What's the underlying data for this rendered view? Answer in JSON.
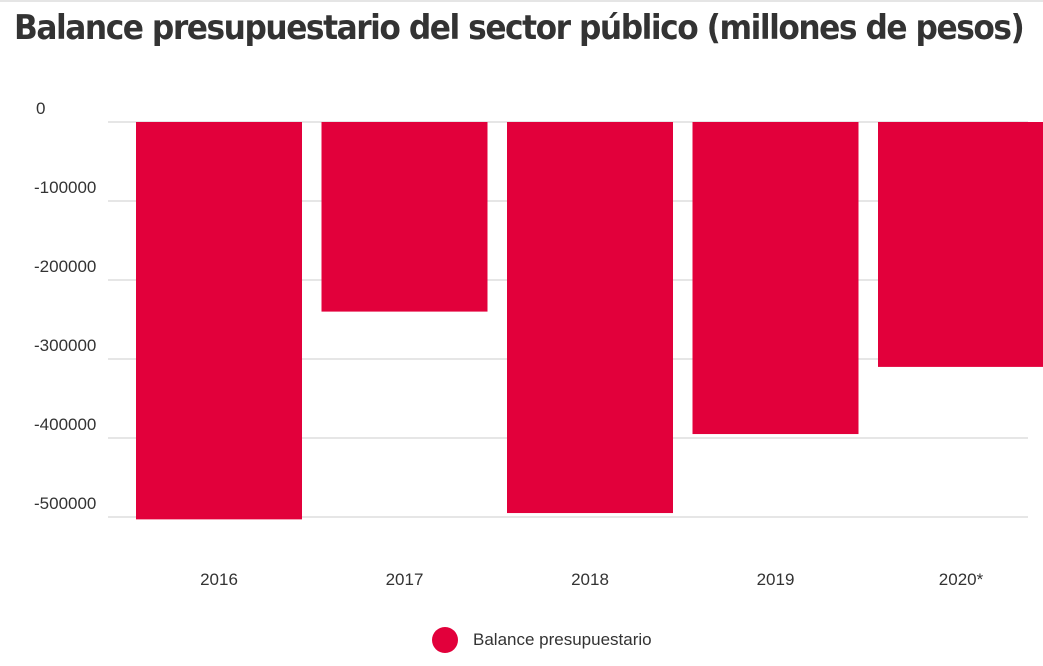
{
  "chart_data": {
    "type": "bar",
    "title": "Balance presupuestario del sector público (millones de pesos)",
    "categories": [
      "2016",
      "2017",
      "2018",
      "2019",
      "2020*"
    ],
    "series": [
      {
        "name": "Balance presupuestario",
        "values": [
          -503000,
          -240000,
          -495000,
          -395000,
          -310000
        ],
        "color": "#e2003b"
      }
    ],
    "y_ticks": [
      "0",
      "-100000",
      "-200000",
      "-300000",
      "-400000",
      "-500000"
    ],
    "ylim": [
      -505000,
      0
    ],
    "grid": true,
    "legend": "bottom-center"
  },
  "colors": {
    "bar": "#e2003b",
    "grid": "#dddddd",
    "text": "#333333"
  }
}
